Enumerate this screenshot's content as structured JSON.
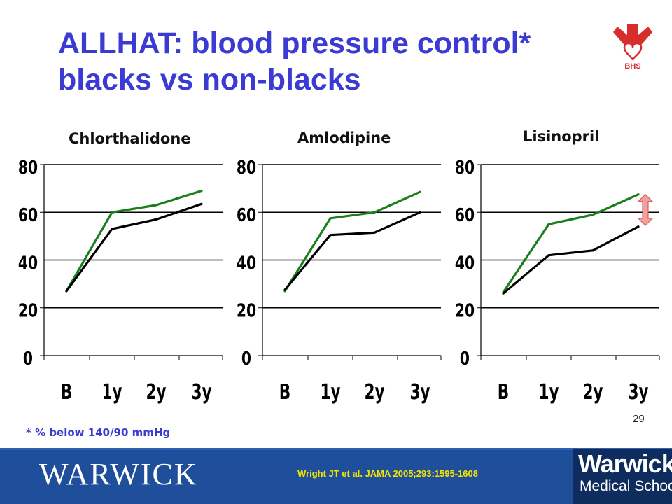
{
  "title": {
    "line1": "ALLHAT: blood pressure control*",
    "line2": "blacks vs non-blacks"
  },
  "logo": {
    "text": "BHS",
    "color": "#d92c2c"
  },
  "colors": {
    "title": "#3b3bd3",
    "green": "#1a7f1a",
    "black": "#000000",
    "footer": "#1f4f9b",
    "reference": "#f3e500"
  },
  "chart_data": [
    {
      "type": "line",
      "title": "Chlorthalidone",
      "categories": [
        "B",
        "1y",
        "2y",
        "3y"
      ],
      "ylim": [
        0,
        80
      ],
      "yticks": [
        "0",
        "20",
        "40",
        "60",
        "80"
      ],
      "grid": true,
      "series": [
        {
          "color": "#1a7f1a",
          "values": [
            27,
            60,
            63,
            69
          ]
        },
        {
          "color": "#000000",
          "values": [
            27,
            53,
            57,
            63.5
          ]
        }
      ]
    },
    {
      "type": "line",
      "title": "Amlodipine",
      "categories": [
        "B",
        "1y",
        "2y",
        "3y"
      ],
      "ylim": [
        0,
        80
      ],
      "yticks": [
        "0",
        "20",
        "40",
        "60",
        "80"
      ],
      "grid": true,
      "series": [
        {
          "color": "#1a7f1a",
          "values": [
            27,
            57.5,
            60,
            68.5
          ]
        },
        {
          "color": "#000000",
          "values": [
            27.5,
            50.5,
            51.5,
            60
          ]
        }
      ]
    },
    {
      "type": "line",
      "title": "Lisinopril",
      "categories": [
        "B",
        "1y",
        "2y",
        "3y"
      ],
      "ylim": [
        0,
        80
      ],
      "yticks": [
        "0",
        "20",
        "40",
        "60",
        "80"
      ],
      "grid": true,
      "series": [
        {
          "color": "#1a7f1a",
          "values": [
            26.5,
            55,
            59,
            67.5
          ]
        },
        {
          "color": "#000000",
          "values": [
            26,
            42,
            44,
            54
          ]
        }
      ],
      "annotation": {
        "type": "double-arrow",
        "color": "#f2a0a0",
        "from": 54.5,
        "to": 67.5
      }
    }
  ],
  "footnote": "* % below 140/90 mmHg",
  "slide_number": "29",
  "footer": {
    "university": "WARWICK",
    "reference": "Wright JT et al. JAMA 2005;293:1595-1608",
    "school_line1": "Warwick",
    "school_line2": "Medical School"
  }
}
